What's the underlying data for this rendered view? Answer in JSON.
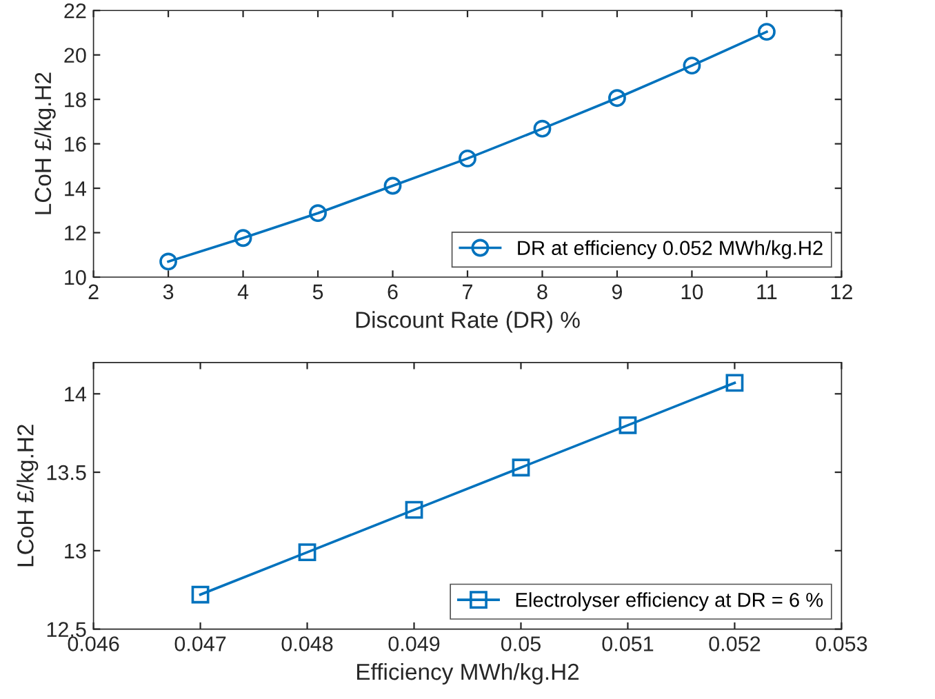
{
  "chart_data": [
    {
      "type": "line",
      "xlabel": "Discount Rate (DR) %",
      "ylabel": "LCoH £/kg.H2",
      "x": [
        3,
        4,
        5,
        6,
        7,
        8,
        9,
        10,
        11
      ],
      "series": [
        {
          "name": "DR at efficiency 0.052 MWh/kg.H2",
          "color": "#0072bd",
          "values": [
            10.7,
            11.76,
            12.88,
            14.11,
            15.34,
            16.68,
            18.06,
            19.52,
            21.04
          ]
        }
      ],
      "xlim": [
        2,
        12
      ],
      "xticks": [
        2,
        3,
        4,
        5,
        6,
        7,
        8,
        9,
        10,
        11,
        12
      ],
      "ylim": [
        10,
        22
      ],
      "yticks": [
        10,
        12,
        14,
        16,
        18,
        20,
        22
      ],
      "marker": "circle",
      "line_style": "solid",
      "grid": false,
      "legend": "bottom right"
    },
    {
      "type": "line",
      "xlabel": "Efficiency MWh/kg.H2",
      "ylabel": "LCoH £/kg.H2",
      "x": [
        0.047,
        0.048,
        0.049,
        0.05,
        0.051,
        0.052
      ],
      "series": [
        {
          "name": "Electrolyser efficiency at DR = 6 %",
          "color": "#0072bd",
          "values": [
            12.72,
            12.99,
            13.26,
            13.53,
            13.8,
            14.07
          ]
        }
      ],
      "xlim": [
        0.046,
        0.053
      ],
      "xticks": [
        0.046,
        0.047,
        0.048,
        0.049,
        0.05,
        0.051,
        0.052,
        0.053
      ],
      "ylim": [
        12.5,
        14.2
      ],
      "yticks": [
        12.5,
        13,
        13.5,
        14
      ],
      "marker": "square",
      "line_style": "solid",
      "grid": false,
      "legend": "bottom right"
    }
  ]
}
